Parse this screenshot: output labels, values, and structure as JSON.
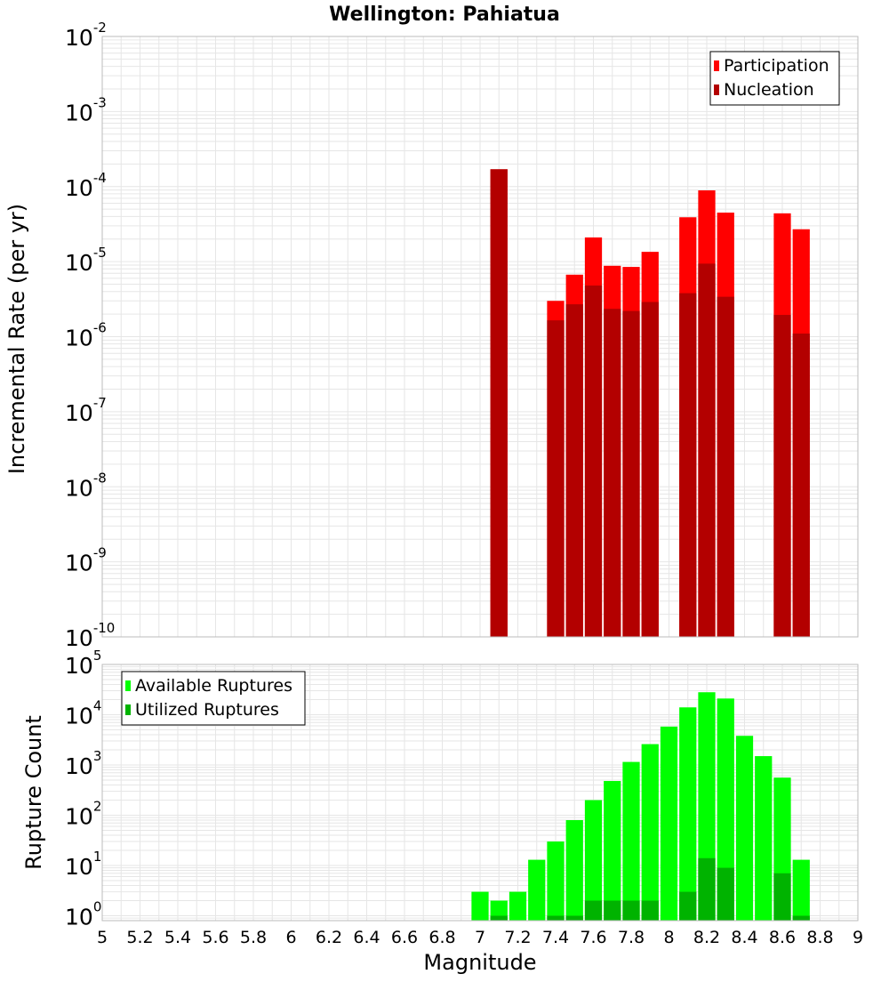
{
  "chart_data": [
    {
      "type": "bar",
      "title": "Wellington: Pahiatua",
      "xlabel": "",
      "ylabel": "Incremental Rate (per yr)",
      "yscale": "log",
      "ylim": [
        1e-10,
        0.01
      ],
      "xlim": [
        5,
        9
      ],
      "bar_width": 0.1,
      "grid": true,
      "legend_position": "top-right",
      "x": [
        7.1,
        7.4,
        7.5,
        7.6,
        7.7,
        7.8,
        7.9,
        8.1,
        8.2,
        8.3,
        8.6,
        8.7
      ],
      "series": [
        {
          "name": "Participation",
          "color": "#ff0000",
          "values": [
            0.00017,
            3e-06,
            6.7e-06,
            2.1e-05,
            8.8e-06,
            8.5e-06,
            1.35e-05,
            3.9e-05,
            8.9e-05,
            4.5e-05,
            4.4e-05,
            2.7e-05
          ]
        },
        {
          "name": "Nucleation",
          "color": "#b30000",
          "values": [
            0.00017,
            1.65e-06,
            2.7e-06,
            4.8e-06,
            2.35e-06,
            2.2e-06,
            2.9e-06,
            3.8e-06,
            9.4e-06,
            3.4e-06,
            1.95e-06,
            1.1e-06
          ]
        }
      ]
    },
    {
      "type": "bar",
      "title": "",
      "xlabel": "Magnitude",
      "ylabel": "Rupture Count",
      "yscale": "log",
      "ylim": [
        0.8,
        100000.0
      ],
      "xlim": [
        5,
        9
      ],
      "bar_width": 0.1,
      "grid": true,
      "legend_position": "top-left",
      "x": [
        7.0,
        7.1,
        7.2,
        7.3,
        7.4,
        7.5,
        7.6,
        7.7,
        7.8,
        7.9,
        8.0,
        8.1,
        8.2,
        8.3,
        8.4,
        8.5,
        8.6,
        8.7
      ],
      "series": [
        {
          "name": "Available Ruptures",
          "color": "#00ff00",
          "values": [
            3,
            2,
            3,
            13,
            30,
            80,
            200,
            480,
            1150,
            2600,
            5800,
            14000,
            28000,
            21000,
            3800,
            1500,
            560,
            13
          ]
        },
        {
          "name": "Utilized Ruptures",
          "color": "#00b300",
          "values": [
            0,
            1,
            0,
            0,
            1,
            1,
            2,
            2,
            2,
            2,
            0,
            3,
            14,
            9,
            0,
            0,
            7,
            1
          ]
        }
      ]
    }
  ],
  "x_ticks": [
    "5",
    "5.2",
    "5.4",
    "5.6",
    "5.8",
    "6",
    "6.2",
    "6.4",
    "6.6",
    "6.8",
    "7",
    "7.2",
    "7.4",
    "7.6",
    "7.8",
    "8",
    "8.2",
    "8.4",
    "8.6",
    "8.8",
    "9"
  ],
  "top_y_ticks": [
    {
      "base": "10",
      "exp": "-10"
    },
    {
      "base": "10",
      "exp": "-9"
    },
    {
      "base": "10",
      "exp": "-8"
    },
    {
      "base": "10",
      "exp": "-7"
    },
    {
      "base": "10",
      "exp": "-6"
    },
    {
      "base": "10",
      "exp": "-5"
    },
    {
      "base": "10",
      "exp": "-4"
    },
    {
      "base": "10",
      "exp": "-3"
    },
    {
      "base": "10",
      "exp": "-2"
    }
  ],
  "bottom_y_ticks": [
    {
      "base": "10",
      "exp": "0"
    },
    {
      "base": "10",
      "exp": "1"
    },
    {
      "base": "10",
      "exp": "2"
    },
    {
      "base": "10",
      "exp": "3"
    },
    {
      "base": "10",
      "exp": "4"
    },
    {
      "base": "10",
      "exp": "5"
    }
  ],
  "colors": {
    "grid": "#e6e6e6",
    "frame": "#bbbbbb",
    "background": "#ffffff"
  }
}
